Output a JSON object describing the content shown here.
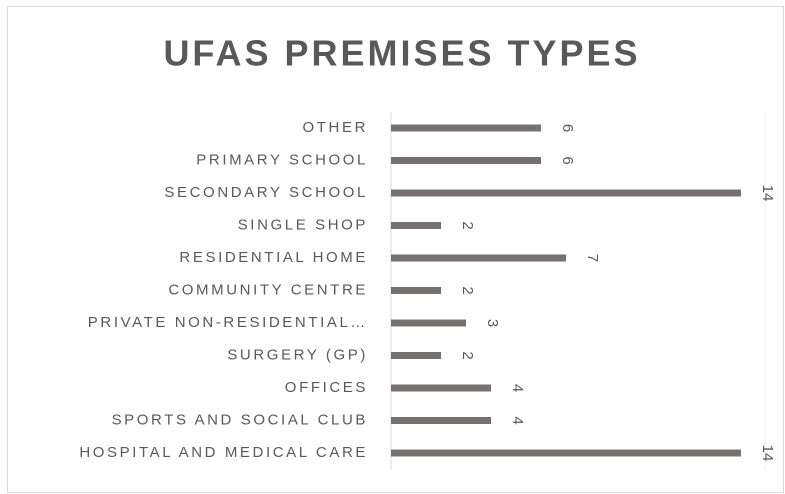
{
  "chart_data": {
    "type": "bar",
    "orientation": "horizontal",
    "title": "UFAS PREMISES TYPES",
    "categories": [
      "OTHER",
      "PRIMARY SCHOOL",
      "SECONDARY SCHOOL",
      "SINGLE SHOP",
      "RESIDENTIAL HOME",
      "COMMUNITY CENTRE",
      "PRIVATE NON-RESIDENTIAL…",
      "SURGERY (GP)",
      "OFFICES",
      "SPORTS AND SOCIAL CLUB",
      "HOSPITAL AND MEDICAL CARE"
    ],
    "values": [
      6,
      6,
      14,
      2,
      7,
      2,
      3,
      2,
      4,
      4,
      14
    ],
    "color": "#757171"
  }
}
